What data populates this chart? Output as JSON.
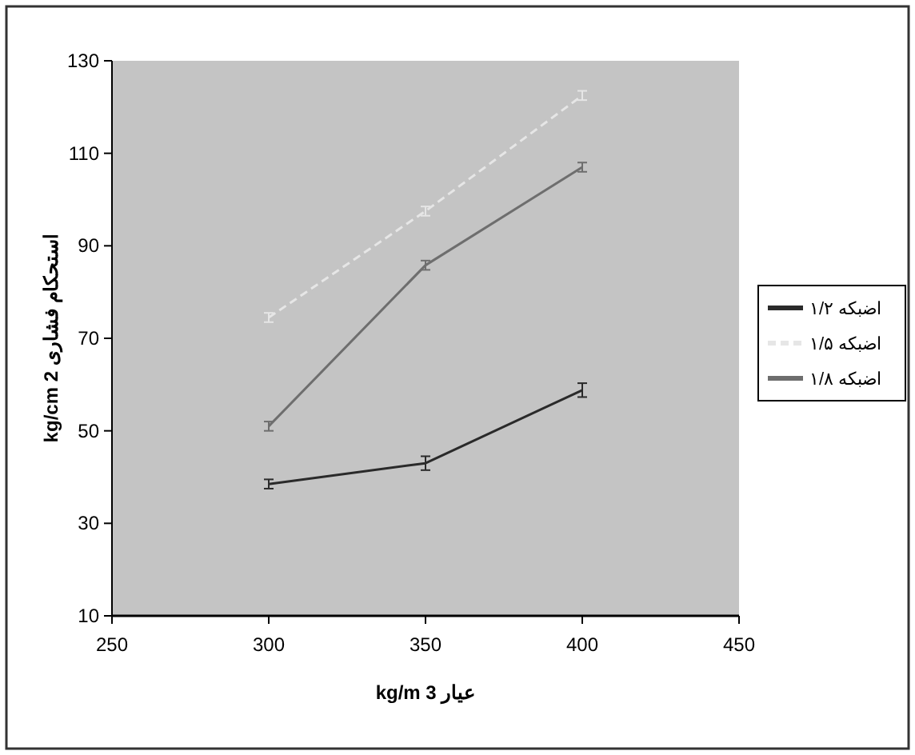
{
  "chart_data": {
    "type": "line",
    "xlabel": "kg/m 3 عیار",
    "ylabel": "kg/cm 2 استحکام فشاری",
    "x": [
      300,
      350,
      400
    ],
    "series": [
      {
        "name": "اضبکه ۱/۲",
        "color": "#2a2a2a",
        "line_style": "solid",
        "values": [
          38.5,
          43,
          58.8
        ],
        "errors": [
          1,
          1.5,
          1.5
        ]
      },
      {
        "name": "اضبکه ۱/۵",
        "color": "#e6e6e6",
        "line_style": "dashed",
        "values": [
          74.5,
          97.5,
          122.5
        ],
        "errors": [
          1,
          1,
          1
        ]
      },
      {
        "name": "اضبکه ۱/۸",
        "color": "#6e6e6e",
        "line_style": "solid",
        "values": [
          51,
          85.8,
          107
        ],
        "errors": [
          1,
          1,
          1
        ]
      }
    ],
    "xlim": [
      250,
      450
    ],
    "xticks": [
      250,
      300,
      350,
      400,
      450
    ],
    "ylim": [
      10,
      130
    ],
    "yticks": [
      10,
      30,
      50,
      70,
      90,
      110,
      130
    ],
    "grid": false,
    "legend": "right",
    "marker": "none"
  }
}
